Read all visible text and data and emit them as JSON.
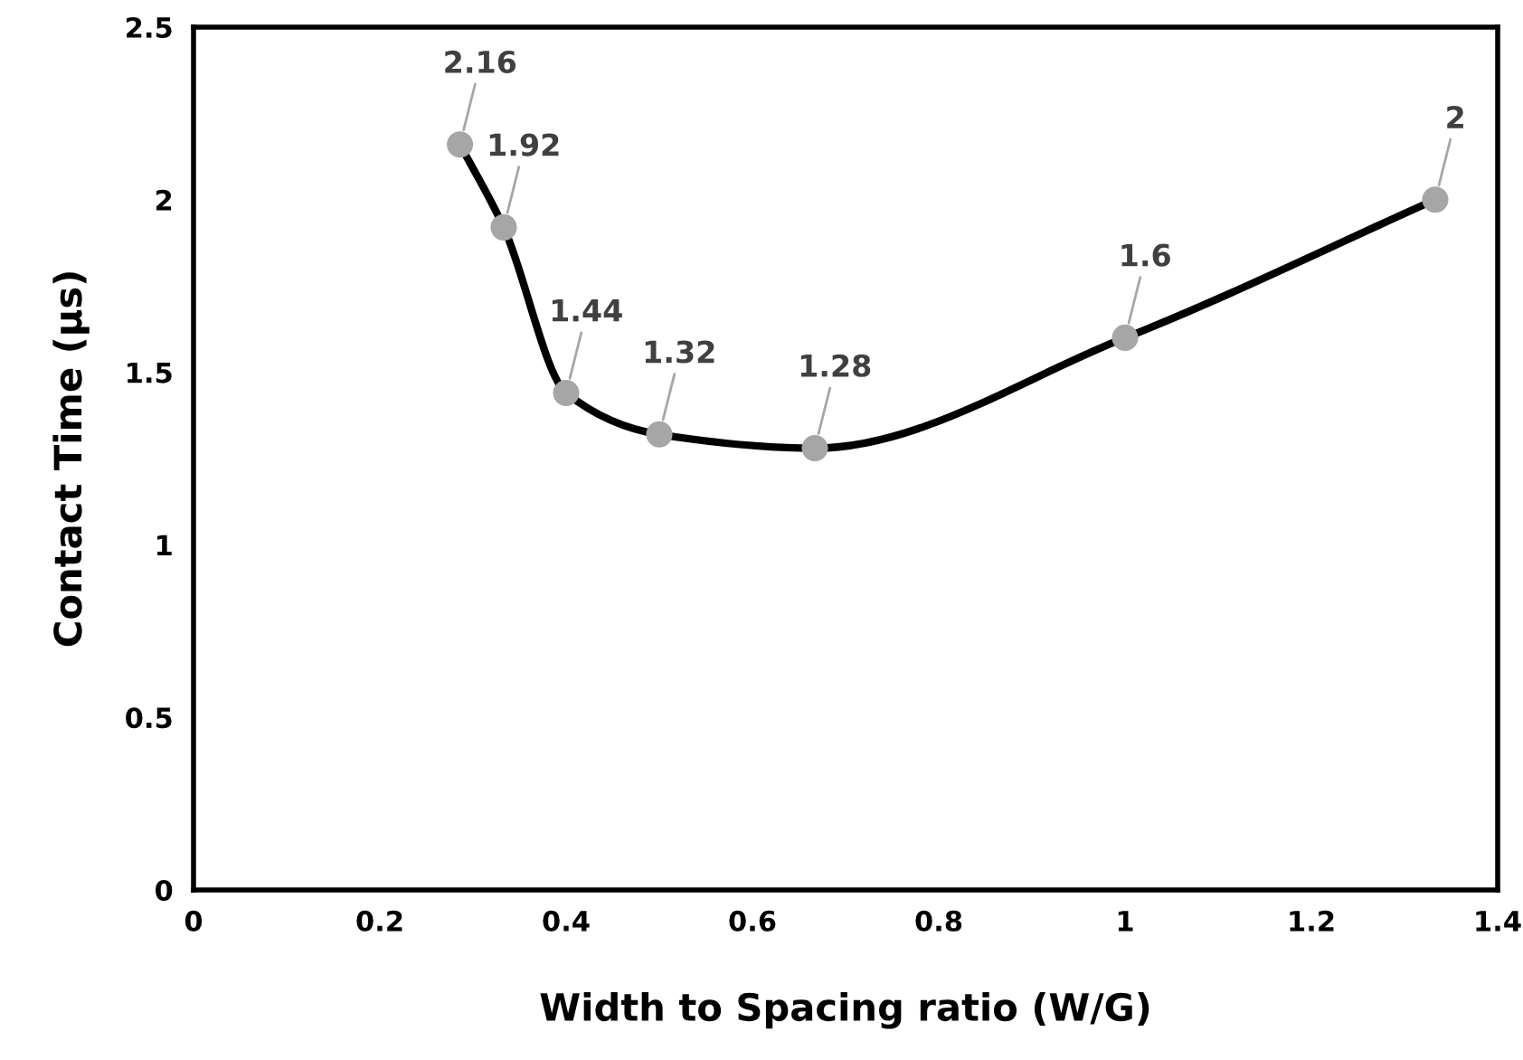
{
  "chart_data": {
    "type": "line",
    "xlabel": "Width to Spacing ratio (W/G)",
    "ylabel": "Contact Time (µs)",
    "series": [
      {
        "x": [
          0.286,
          0.333,
          0.4,
          0.5,
          0.667,
          1,
          1.333
        ],
        "values": [
          2.16,
          1.92,
          1.44,
          1.32,
          1.28,
          1.6,
          2
        ],
        "color": "#000000",
        "colors": [
          "#a6a6a6",
          "#a6a6a6",
          "#a6a6a6",
          "#a6a6a6",
          "#a6a6a6",
          "#a6a6a6",
          "#a6a6a6"
        ]
      }
    ],
    "xlim": [
      0,
      1.4
    ],
    "xticks": [
      0,
      0.2,
      0.4,
      0.6,
      0.8,
      1,
      1.2,
      1.4
    ],
    "ylim": [
      0,
      2.5
    ],
    "yticks": [
      0,
      0.5,
      1,
      1.5,
      2,
      2.5
    ],
    "marker": "circle",
    "line_style": "solid",
    "data_labels": true,
    "grid": false
  }
}
